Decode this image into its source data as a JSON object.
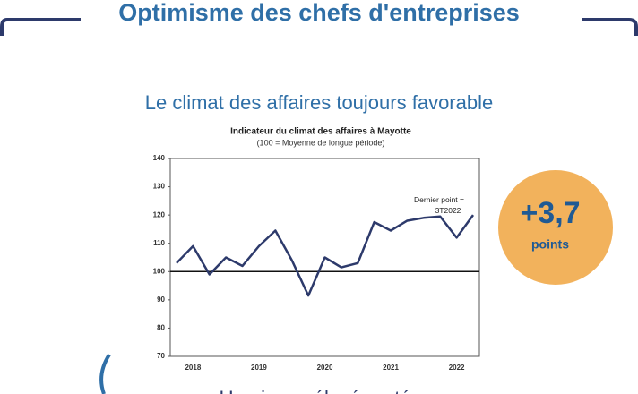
{
  "header": {
    "title": "Optimisme des chefs d'entreprises",
    "subtitle": "Le climat des affaires toujours favorable"
  },
  "badge": {
    "value": "+3,7",
    "unit": "points"
  },
  "footer": {
    "text": "Un niveau élevé porté par une"
  },
  "chart_data": {
    "type": "line",
    "title": "Indicateur du climat des affaires à Mayotte",
    "subtitle": "(100 = Moyenne de longue période)",
    "annotation": "Dernier point = 3T2022",
    "categories": [
      null,
      "2018",
      null,
      null,
      null,
      "2019",
      null,
      null,
      null,
      "2020",
      null,
      null,
      null,
      "2021",
      null,
      null,
      null,
      "2022",
      null
    ],
    "series": [
      {
        "name": "Indicateur du climat des affaires",
        "color": "#2d3a6b",
        "values": [
          103,
          109,
          99,
          105,
          102,
          109,
          114.5,
          104,
          91.5,
          105,
          101.5,
          103,
          117.5,
          114.5,
          118,
          119,
          119.5,
          112,
          120
        ]
      }
    ],
    "reference_line": 100,
    "ylim": [
      70,
      140
    ],
    "yticks": [
      70,
      80,
      90,
      100,
      110,
      120,
      130,
      140
    ]
  }
}
